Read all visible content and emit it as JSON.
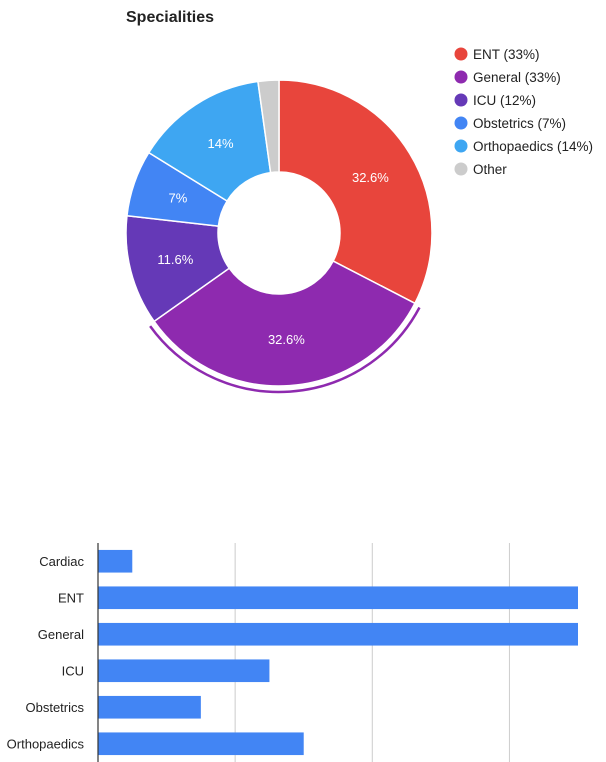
{
  "chart_data": [
    {
      "type": "pie",
      "donut": true,
      "title": "Specialities",
      "legend_position": "right",
      "slices": [
        {
          "name": "ENT",
          "legend": "ENT (33%)",
          "value": 32.6,
          "label": "32.6%",
          "color": "#e8453c"
        },
        {
          "name": "General",
          "legend": "General (33%)",
          "value": 32.6,
          "label": "32.6%",
          "color": "#8e2aaf",
          "highlighted": true
        },
        {
          "name": "ICU",
          "legend": "ICU (12%)",
          "value": 11.6,
          "label": "11.6%",
          "color": "#6539b7"
        },
        {
          "name": "Obstetrics",
          "legend": "Obstetrics (7%)",
          "value": 7.0,
          "label": "7%",
          "color": "#4285f4"
        },
        {
          "name": "Orthopaedics",
          "legend": "Orthopaedics (14%)",
          "value": 14.0,
          "label": "14%",
          "color": "#3ea6f2"
        },
        {
          "name": "Other",
          "legend": "Other",
          "value": 2.2,
          "label": "",
          "color": "#cccccc"
        }
      ]
    },
    {
      "type": "bar",
      "orientation": "horizontal",
      "categories": [
        "Cardiac",
        "ENT",
        "General",
        "ICU",
        "Obstetrics",
        "Orthopaedics"
      ],
      "values": [
        1,
        14,
        14,
        5,
        3,
        6
      ],
      "xlim": [
        0,
        14
      ],
      "gridlines": [
        4,
        8,
        12
      ],
      "grid": true,
      "color": "#4285f4"
    }
  ]
}
